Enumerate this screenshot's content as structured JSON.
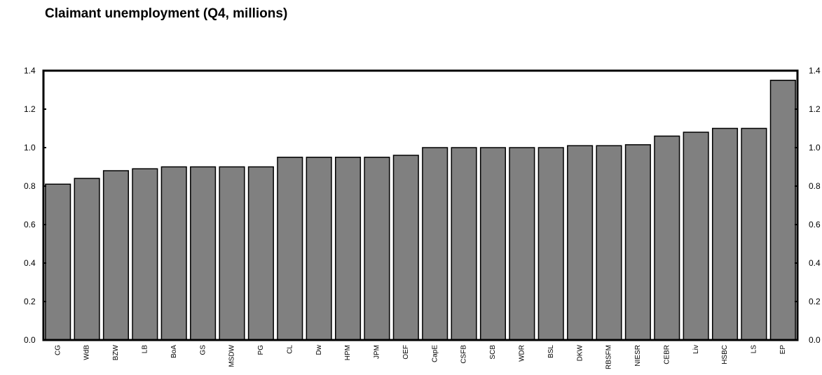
{
  "chart_data": {
    "type": "bar",
    "title": "Claimant unemployment (Q4, millions)",
    "xlabel": "",
    "ylabel": "",
    "ylim": [
      0,
      1.4
    ],
    "yticks": [
      "0.0",
      "0.2",
      "0.4",
      "0.6",
      "0.8",
      "1.0",
      "1.2",
      "1.4"
    ],
    "secondary_y_axis": true,
    "grid": false,
    "legend": "none",
    "bar_color": "#808080",
    "categories": [
      "CG",
      "WdB",
      "BZW",
      "LB",
      "BoA",
      "GS",
      "MSDW",
      "PG",
      "CL",
      "Dw",
      "HPM",
      "JPM",
      "OEF",
      "CapE",
      "CSFB",
      "SCB",
      "WDR",
      "BSL",
      "DKW",
      "RBSFM",
      "NIESR",
      "CEBR",
      "Liv",
      "HSBC",
      "LS",
      "EP"
    ],
    "values": [
      0.81,
      0.84,
      0.88,
      0.89,
      0.9,
      0.9,
      0.9,
      0.9,
      0.95,
      0.95,
      0.95,
      0.95,
      0.96,
      1.0,
      1.0,
      1.0,
      1.0,
      1.0,
      1.01,
      1.01,
      1.015,
      1.06,
      1.08,
      1.1,
      1.1,
      1.35
    ]
  }
}
